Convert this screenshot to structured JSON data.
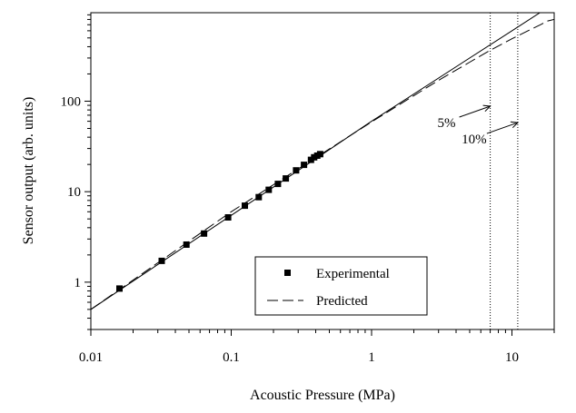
{
  "chart_data": {
    "type": "scatter",
    "title": "",
    "xlabel": "Acoustic Pressure (MPa)",
    "ylabel": "Sensor output (arb. units)",
    "x_scale": "log",
    "y_scale": "log",
    "xlim": [
      0.01,
      20
    ],
    "ylim": [
      0.3,
      950
    ],
    "x_ticks": [
      0.01,
      0.1,
      1,
      10
    ],
    "x_tick_labels": [
      "0.01",
      "0.1",
      "1",
      "10"
    ],
    "y_ticks": [
      1,
      10,
      100
    ],
    "y_tick_labels": [
      "1",
      "10",
      "100"
    ],
    "grid": false,
    "legend_position": "bottom-center",
    "series": [
      {
        "name": "Experimental",
        "style": "square-markers",
        "color": "#000000",
        "x": [
          0.016,
          0.032,
          0.048,
          0.064,
          0.095,
          0.125,
          0.157,
          0.185,
          0.215,
          0.245,
          0.29,
          0.33,
          0.37,
          0.39,
          0.41,
          0.43
        ],
        "y": [
          0.85,
          1.72,
          2.6,
          3.45,
          5.2,
          7.0,
          8.7,
          10.5,
          12.2,
          14.0,
          17.2,
          19.8,
          22.5,
          24.0,
          25.0,
          26.0
        ]
      },
      {
        "name": "",
        "style": "solid-line",
        "color": "#000000",
        "x": [
          0.01,
          1,
          10,
          18
        ],
        "y": [
          0.5,
          60,
          600,
          1080
        ]
      },
      {
        "name": "Predicted",
        "style": "dashed-line",
        "color": "#000000",
        "x": [
          0.01,
          0.1,
          1,
          2,
          3,
          5,
          7,
          10,
          13,
          16,
          18,
          20
        ],
        "y": [
          0.5,
          6,
          59,
          115,
          170,
          270,
          365,
          490,
          600,
          700,
          770,
          800
        ]
      }
    ],
    "vertical_lines": [
      {
        "x": 7,
        "style": "dotted"
      },
      {
        "x": 11,
        "style": "dotted"
      }
    ],
    "annotations": [
      {
        "text": "5%",
        "target": [
          7,
          88
        ]
      },
      {
        "text": "10%",
        "target": [
          11,
          58
        ]
      }
    ]
  }
}
